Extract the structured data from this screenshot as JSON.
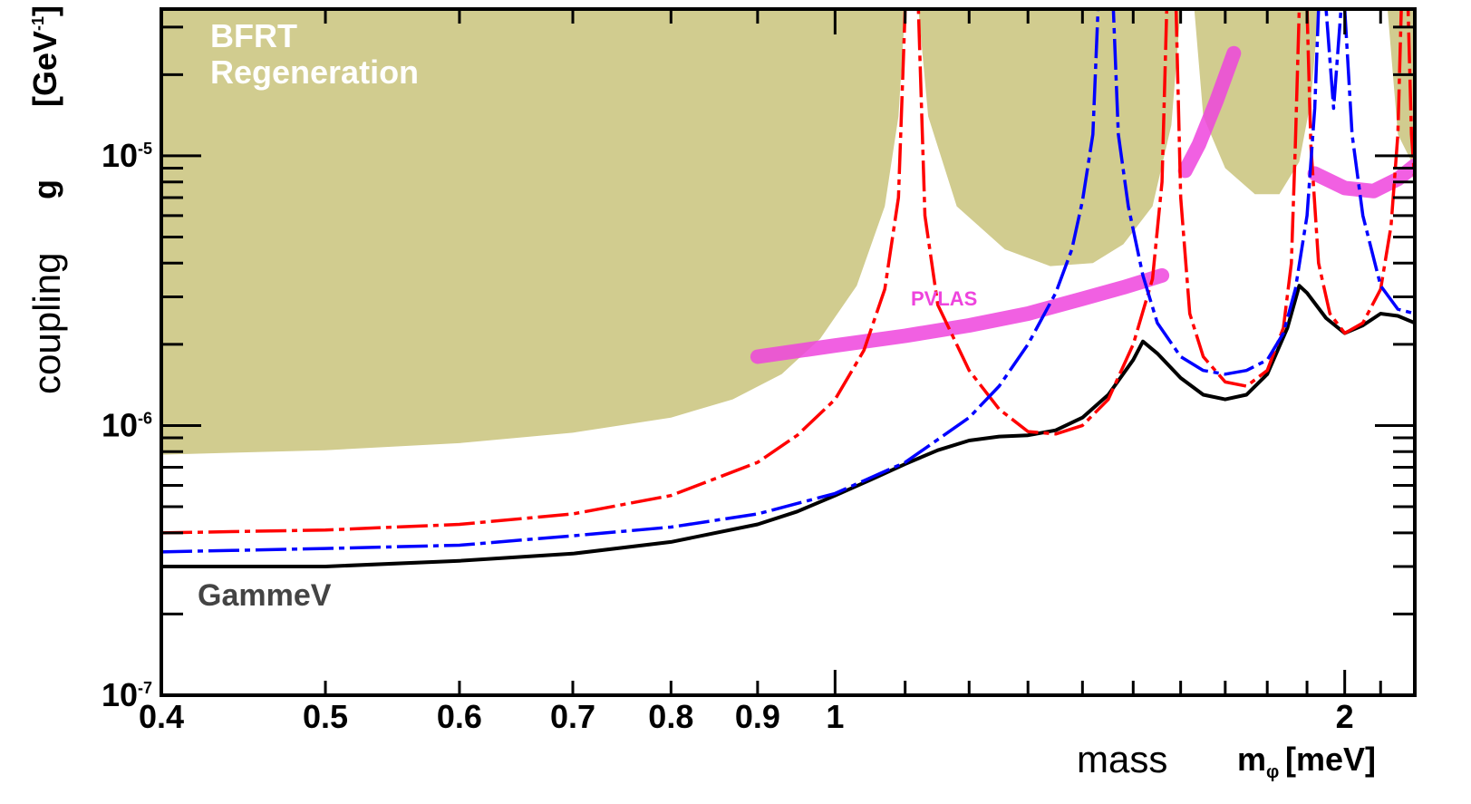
{
  "chart_data": {
    "type": "line",
    "title": "",
    "xlabel": {
      "word": "mass",
      "symbol": "m",
      "subscript": "φ",
      "unit": "[meV]"
    },
    "ylabel": {
      "word": "coupling",
      "symbol": "g",
      "unit": "[GeV",
      "unit_sup": "-1",
      "unit_end": "]"
    },
    "x_scale": "log",
    "y_scale": "log",
    "xlim": [
      0.4,
      2.2
    ],
    "ylim": [
      1e-07,
      3.5e-05
    ],
    "x_ticks": [
      {
        "v": 0.4,
        "label": "0.4"
      },
      {
        "v": 0.5,
        "label": "0.5"
      },
      {
        "v": 0.6,
        "label": "0.6"
      },
      {
        "v": 0.7,
        "label": "0.7"
      },
      {
        "v": 0.8,
        "label": "0.8"
      },
      {
        "v": 0.9,
        "label": "0.9"
      },
      {
        "v": 1.0,
        "label": "1"
      },
      {
        "v": 2.0,
        "label": "2"
      }
    ],
    "y_ticks": [
      {
        "v": 1e-07,
        "base": "10",
        "exp": "-7"
      },
      {
        "v": 1e-06,
        "base": "10",
        "exp": "-6"
      },
      {
        "v": 1e-05,
        "base": "10",
        "exp": "-5"
      }
    ],
    "annotations": {
      "bfrt": [
        "BFRT",
        "Regeneration"
      ],
      "pvlas": "PVLAS",
      "gammev": "GammeV"
    },
    "colors": {
      "bfrt_fill": "#d1cc8f",
      "pvlas": "#ee44dd",
      "black": "#000000",
      "red": "#ff0000",
      "blue": "#0000ff",
      "annotation_white": "#ffffff",
      "gammev_text": "#444444"
    },
    "bfrt_region": {
      "floor": [
        [
          0.4,
          7.8e-07
        ],
        [
          0.5,
          8.1e-07
        ],
        [
          0.6,
          8.6e-07
        ],
        [
          0.7,
          9.4e-07
        ],
        [
          0.8,
          1.07e-06
        ],
        [
          0.87,
          1.25e-06
        ],
        [
          0.93,
          1.55e-06
        ],
        [
          0.98,
          2.1e-06
        ],
        [
          1.03,
          3.3e-06
        ],
        [
          1.07,
          6.5e-06
        ],
        [
          1.09,
          1.4e-05
        ],
        [
          1.1,
          3.5e-05
        ]
      ],
      "dip1": [
        [
          1.12,
          3.5e-05
        ],
        [
          1.135,
          1.4e-05
        ],
        [
          1.18,
          6.5e-06
        ],
        [
          1.26,
          4.5e-06
        ],
        [
          1.34,
          3.9e-06
        ],
        [
          1.42,
          4e-06
        ],
        [
          1.48,
          4.7e-06
        ],
        [
          1.54,
          6.5e-06
        ],
        [
          1.58,
          1.3e-05
        ],
        [
          1.6,
          3.5e-05
        ]
      ],
      "dip2": [
        [
          1.63,
          3.5e-05
        ],
        [
          1.65,
          1.4e-05
        ],
        [
          1.7,
          9e-06
        ],
        [
          1.77,
          7.2e-06
        ],
        [
          1.83,
          7.2e-06
        ],
        [
          1.88,
          9.5e-06
        ],
        [
          1.91,
          1.6e-05
        ],
        [
          1.93,
          3.5e-05
        ]
      ],
      "dip3": [
        [
          2.12,
          3.5e-05
        ],
        [
          2.15,
          1.2e-05
        ],
        [
          2.2,
          9e-06
        ]
      ]
    },
    "pvlas_band": {
      "center": [
        [
          0.9,
          1.8e-06
        ],
        [
          1.0,
          1.98e-06
        ],
        [
          1.1,
          2.15e-06
        ],
        [
          1.2,
          2.35e-06
        ],
        [
          1.3,
          2.6e-06
        ],
        [
          1.4,
          2.95e-06
        ],
        [
          1.48,
          3.25e-06
        ],
        [
          1.56,
          3.6e-06
        ]
      ],
      "center2": [
        [
          1.61,
          8.8e-06
        ],
        [
          1.64,
          1.1e-05
        ],
        [
          1.68,
          1.6e-05
        ],
        [
          1.72,
          2.4e-05
        ]
      ],
      "center3": [
        [
          1.92,
          8.6e-06
        ],
        [
          2.0,
          7.6e-06
        ],
        [
          2.08,
          7.4e-06
        ],
        [
          2.15,
          8.2e-06
        ],
        [
          2.2,
          9.2e-06
        ]
      ]
    },
    "series": [
      {
        "color": "black",
        "points": [
          [
            0.4,
            3e-07
          ],
          [
            0.5,
            3e-07
          ],
          [
            0.6,
            3.15e-07
          ],
          [
            0.7,
            3.35e-07
          ],
          [
            0.8,
            3.7e-07
          ],
          [
            0.9,
            4.3e-07
          ],
          [
            0.95,
            4.8e-07
          ],
          [
            1.0,
            5.5e-07
          ],
          [
            1.05,
            6.3e-07
          ],
          [
            1.1,
            7.2e-07
          ],
          [
            1.15,
            8.1e-07
          ],
          [
            1.2,
            8.8e-07
          ],
          [
            1.25,
            9.1e-07
          ],
          [
            1.3,
            9.2e-07
          ],
          [
            1.35,
            9.6e-07
          ],
          [
            1.4,
            1.07e-06
          ],
          [
            1.45,
            1.3e-06
          ],
          [
            1.5,
            1.75e-06
          ],
          [
            1.52,
            2.05e-06
          ],
          [
            1.55,
            1.85e-06
          ],
          [
            1.6,
            1.5e-06
          ],
          [
            1.65,
            1.3e-06
          ],
          [
            1.7,
            1.25e-06
          ],
          [
            1.75,
            1.3e-06
          ],
          [
            1.8,
            1.55e-06
          ],
          [
            1.85,
            2.3e-06
          ],
          [
            1.88,
            3.3e-06
          ],
          [
            1.9,
            3.1e-06
          ],
          [
            1.95,
            2.5e-06
          ],
          [
            2.0,
            2.2e-06
          ],
          [
            2.05,
            2.35e-06
          ],
          [
            2.1,
            2.6e-06
          ],
          [
            2.15,
            2.55e-06
          ],
          [
            2.2,
            2.4e-06
          ]
        ]
      },
      {
        "color": "red",
        "points": [
          [
            0.4,
            4e-07
          ],
          [
            0.5,
            4.1e-07
          ],
          [
            0.6,
            4.3e-07
          ],
          [
            0.7,
            4.7e-07
          ],
          [
            0.8,
            5.5e-07
          ],
          [
            0.9,
            7.3e-07
          ],
          [
            0.95,
            9.2e-07
          ],
          [
            1.0,
            1.25e-06
          ],
          [
            1.04,
            1.9e-06
          ],
          [
            1.07,
            3.2e-06
          ],
          [
            1.09,
            7e-06
          ],
          [
            1.1,
            3.5e-05
          ],
          [
            1.12,
            3.5e-05
          ],
          [
            1.13,
            6e-06
          ],
          [
            1.15,
            2.8e-06
          ],
          [
            1.2,
            1.6e-06
          ],
          [
            1.25,
            1.15e-06
          ],
          [
            1.3,
            9.5e-07
          ],
          [
            1.35,
            9.3e-07
          ],
          [
            1.4,
            1e-06
          ],
          [
            1.45,
            1.25e-06
          ],
          [
            1.5,
            2e-06
          ],
          [
            1.54,
            3.5e-06
          ],
          [
            1.56,
            8e-06
          ],
          [
            1.57,
            3.5e-05
          ],
          [
            1.59,
            3.5e-05
          ],
          [
            1.6,
            7e-06
          ],
          [
            1.62,
            2.6e-06
          ],
          [
            1.65,
            1.8e-06
          ],
          [
            1.7,
            1.45e-06
          ],
          [
            1.75,
            1.4e-06
          ],
          [
            1.8,
            1.6e-06
          ],
          [
            1.84,
            2.3e-06
          ],
          [
            1.86,
            4e-06
          ],
          [
            1.87,
            1.1e-05
          ],
          [
            1.88,
            3.5e-05
          ],
          [
            1.9,
            3.5e-05
          ],
          [
            1.91,
            1.1e-05
          ],
          [
            1.93,
            4e-06
          ],
          [
            1.96,
            2.6e-06
          ],
          [
            2.0,
            2.2e-06
          ],
          [
            2.05,
            2.4e-06
          ],
          [
            2.1,
            3.2e-06
          ],
          [
            2.13,
            5.5e-06
          ],
          [
            2.15,
            1.2e-05
          ],
          [
            2.16,
            3.5e-05
          ],
          [
            2.18,
            3.5e-05
          ],
          [
            2.19,
            1.2e-05
          ],
          [
            2.2,
            8e-06
          ]
        ]
      },
      {
        "color": "blue",
        "points": [
          [
            0.4,
            3.4e-07
          ],
          [
            0.5,
            3.5e-07
          ],
          [
            0.6,
            3.6e-07
          ],
          [
            0.7,
            3.9e-07
          ],
          [
            0.8,
            4.2e-07
          ],
          [
            0.9,
            4.7e-07
          ],
          [
            1.0,
            5.6e-07
          ],
          [
            1.1,
            7.3e-07
          ],
          [
            1.2,
            1.07e-06
          ],
          [
            1.25,
            1.4e-06
          ],
          [
            1.3,
            2e-06
          ],
          [
            1.35,
            3.1e-06
          ],
          [
            1.38,
            4.5e-06
          ],
          [
            1.4,
            6.8e-06
          ],
          [
            1.42,
            1.2e-05
          ],
          [
            1.43,
            3.5e-05
          ],
          [
            1.46,
            3.5e-05
          ],
          [
            1.47,
            1.2e-05
          ],
          [
            1.49,
            6.5e-06
          ],
          [
            1.52,
            3.6e-06
          ],
          [
            1.55,
            2.4e-06
          ],
          [
            1.6,
            1.8e-06
          ],
          [
            1.65,
            1.6e-06
          ],
          [
            1.7,
            1.55e-06
          ],
          [
            1.75,
            1.6e-06
          ],
          [
            1.8,
            1.75e-06
          ],
          [
            1.84,
            2.2e-06
          ],
          [
            1.87,
            3.2e-06
          ],
          [
            1.9,
            6e-06
          ],
          [
            1.92,
            1.5e-05
          ],
          [
            1.93,
            3.5e-05
          ],
          [
            1.95,
            3.5e-05
          ],
          [
            1.97,
            1.5e-05
          ],
          [
            1.99,
            3.5e-05
          ],
          [
            2.0,
            3.5e-05
          ],
          [
            2.02,
            1.2e-05
          ],
          [
            2.05,
            6e-06
          ],
          [
            2.1,
            3.3e-06
          ],
          [
            2.15,
            2.7e-06
          ],
          [
            2.2,
            2.6e-06
          ]
        ]
      }
    ]
  }
}
